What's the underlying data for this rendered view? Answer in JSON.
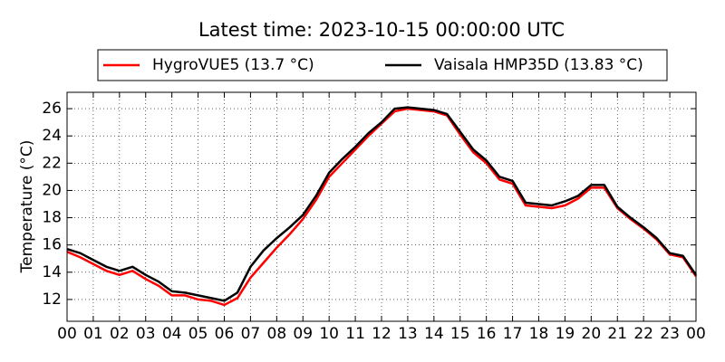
{
  "chart_data": {
    "type": "line",
    "title": "Latest time: 2023-10-15 00:00:00 UTC",
    "ylabel": "Temperature (°C)",
    "x": [
      0,
      0.5,
      1,
      1.5,
      2,
      2.5,
      3,
      3.5,
      4,
      4.5,
      5,
      5.5,
      6,
      6.5,
      7,
      7.5,
      8,
      8.5,
      9,
      9.5,
      10,
      10.5,
      11,
      11.5,
      12,
      12.5,
      13,
      13.5,
      14,
      14.5,
      15,
      15.5,
      16,
      16.5,
      17,
      17.5,
      18,
      18.5,
      19,
      19.5,
      20,
      20.5,
      21,
      21.5,
      22,
      22.5,
      23,
      23.5,
      24
    ],
    "series": [
      {
        "name": "HygroVUE5 (13.7 °C)",
        "color": "#ff0000",
        "values": [
          15.5,
          15.1,
          14.6,
          14.1,
          13.8,
          14.1,
          13.5,
          13.0,
          12.3,
          12.3,
          12.0,
          11.9,
          11.6,
          12.1,
          13.6,
          14.7,
          15.8,
          16.8,
          17.9,
          19.3,
          21.0,
          22.0,
          23.0,
          24.0,
          24.9,
          25.8,
          26.0,
          25.9,
          25.8,
          25.5,
          24.1,
          22.8,
          22.0,
          20.8,
          20.5,
          18.9,
          18.8,
          18.7,
          18.9,
          19.4,
          20.2,
          20.2,
          18.7,
          17.9,
          17.2,
          16.4,
          15.3,
          15.1,
          13.7
        ]
      },
      {
        "name": "Vaisala HMP35D (13.83 °C)",
        "color": "#000000",
        "values": [
          15.7,
          15.4,
          14.9,
          14.4,
          14.1,
          14.4,
          13.8,
          13.3,
          12.6,
          12.5,
          12.3,
          12.1,
          11.9,
          12.5,
          14.4,
          15.6,
          16.5,
          17.3,
          18.2,
          19.6,
          21.3,
          22.3,
          23.2,
          24.2,
          25.0,
          26.0,
          26.1,
          26.0,
          25.9,
          25.6,
          24.3,
          23.0,
          22.2,
          21.0,
          20.7,
          19.1,
          19.0,
          18.9,
          19.2,
          19.6,
          20.4,
          20.4,
          18.8,
          18.0,
          17.3,
          16.5,
          15.4,
          15.2,
          13.8
        ]
      }
    ],
    "xlim": [
      0,
      24
    ],
    "xticks": [
      {
        "value": 0,
        "label": "00"
      },
      {
        "value": 1,
        "label": "01"
      },
      {
        "value": 2,
        "label": "02"
      },
      {
        "value": 3,
        "label": "03"
      },
      {
        "value": 4,
        "label": "04"
      },
      {
        "value": 5,
        "label": "05"
      },
      {
        "value": 6,
        "label": "06"
      },
      {
        "value": 7,
        "label": "07"
      },
      {
        "value": 8,
        "label": "08"
      },
      {
        "value": 9,
        "label": "09"
      },
      {
        "value": 10,
        "label": "10"
      },
      {
        "value": 11,
        "label": "11"
      },
      {
        "value": 12,
        "label": "12"
      },
      {
        "value": 13,
        "label": "13"
      },
      {
        "value": 14,
        "label": "14"
      },
      {
        "value": 15,
        "label": "15"
      },
      {
        "value": 16,
        "label": "16"
      },
      {
        "value": 17,
        "label": "17"
      },
      {
        "value": 18,
        "label": "18"
      },
      {
        "value": 19,
        "label": "19"
      },
      {
        "value": 20,
        "label": "20"
      },
      {
        "value": 21,
        "label": "21"
      },
      {
        "value": 22,
        "label": "22"
      },
      {
        "value": 23,
        "label": "23"
      },
      {
        "value": 24,
        "label": "00"
      }
    ],
    "ylim": [
      10.4,
      27.2
    ],
    "yticks": [
      12,
      14,
      16,
      18,
      20,
      22,
      24,
      26
    ],
    "grid": true,
    "legend": "top"
  }
}
